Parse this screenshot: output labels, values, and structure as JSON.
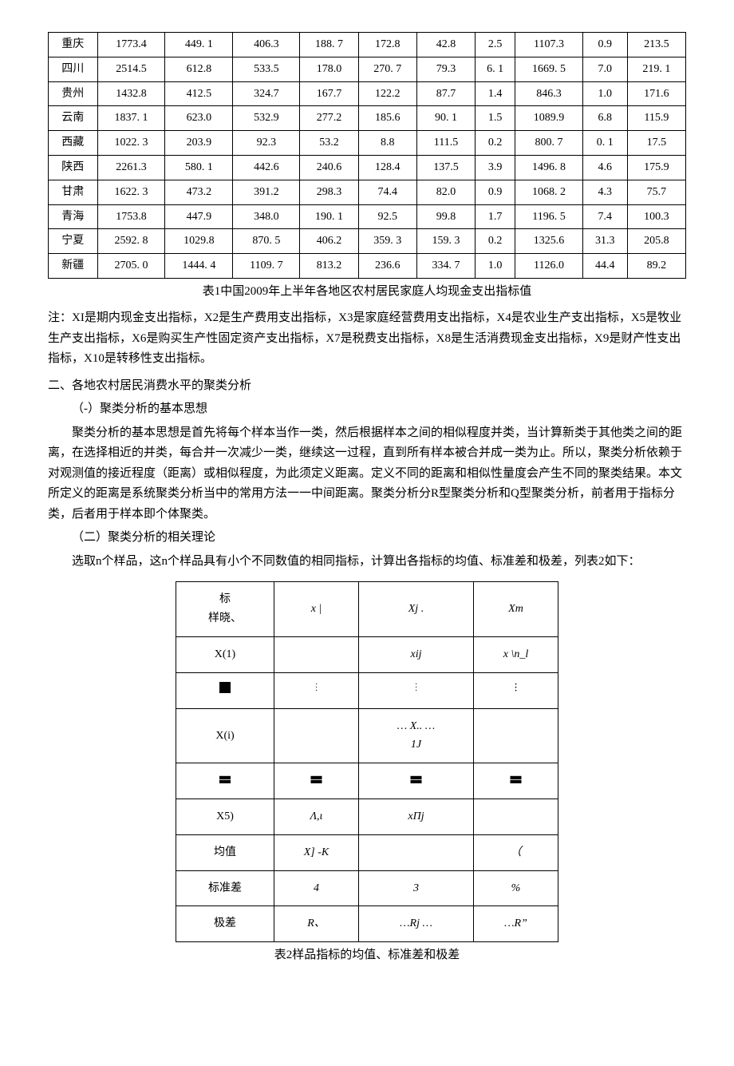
{
  "table1": {
    "rows": [
      {
        "region": "重庆",
        "c": [
          "1773.4",
          "449. 1",
          "406.3",
          "188. 7",
          "172.8",
          "42.8",
          "2.5",
          "1107.3",
          "0.9",
          "213.5"
        ]
      },
      {
        "region": "四川",
        "c": [
          "2514.5",
          "612.8",
          "533.5",
          "178.0",
          "270. 7",
          "79.3",
          "6. 1",
          "1669. 5",
          "7.0",
          "219. 1"
        ]
      },
      {
        "region": "贵州",
        "c": [
          "1432.8",
          "412.5",
          "324.7",
          "167.7",
          "122.2",
          "87.7",
          "1.4",
          "846.3",
          "1.0",
          "171.6"
        ]
      },
      {
        "region": "云南",
        "c": [
          "1837. 1",
          "623.0",
          "532.9",
          "277.2",
          "185.6",
          "90. 1",
          "1.5",
          "1089.9",
          "6.8",
          "115.9"
        ]
      },
      {
        "region": "西藏",
        "c": [
          "1022. 3",
          "203.9",
          "92.3",
          "53.2",
          "8.8",
          "111.5",
          "0.2",
          "800. 7",
          "0. 1",
          "17.5"
        ]
      },
      {
        "region": "陕西",
        "c": [
          "2261.3",
          "580. 1",
          "442.6",
          "240.6",
          "128.4",
          "137.5",
          "3.9",
          "1496. 8",
          "4.6",
          "175.9"
        ]
      },
      {
        "region": "甘肃",
        "c": [
          "1622. 3",
          "473.2",
          "391.2",
          "298.3",
          "74.4",
          "82.0",
          "0.9",
          "1068. 2",
          "4.3",
          "75.7"
        ]
      },
      {
        "region": "青海",
        "c": [
          "1753.8",
          "447.9",
          "348.0",
          "190. 1",
          "92.5",
          "99.8",
          "1.7",
          "1196. 5",
          "7.4",
          "100.3"
        ]
      },
      {
        "region": "宁夏",
        "c": [
          "2592. 8",
          "1029.8",
          "870. 5",
          "406.2",
          "359. 3",
          "159. 3",
          "0.2",
          "1325.6",
          "31.3",
          "205.8"
        ]
      },
      {
        "region": "新疆",
        "c": [
          "2705. 0",
          "1444. 4",
          "1109. 7",
          "813.2",
          "236.6",
          "334. 7",
          "1.0",
          "1126.0",
          "44.4",
          "89.2"
        ]
      }
    ],
    "caption": "表1中国2009年上半年各地区农村居民家庭人均现金支出指标值"
  },
  "note": "注：XI是期内现金支出指标，X2是生产费用支出指标，X3是家庭经营费用支出指标，X4是农业生产支出指标，X5是牧业生产支出指标，X6是购买生产性固定资产支出指标，X7是税费支出指标，X8是生活消费现金支出指标，X9是财产性支出指标，X10是转移性支出指标。",
  "sec2_title": "二、各地农村居民消费水平的聚类分析",
  "sub1_title": "（-）聚类分析的基本思想",
  "sub1_body": "聚类分析的基本思想是首先将每个样本当作一类，然后根据样本之间的相似程度并类，当计算新类于其他类之间的距离，在选择相近的并类，每合并一次减少一类，继续这一过程，直到所有样本被合并成一类为止。所以，聚类分析依赖于对观测值的接近程度（距离）或相似程度，为此须定义距离。定义不同的距离和相似性量度会产生不同的聚类结果。本文所定义的距离是系统聚类分析当中的常用方法一一中间距离。聚类分析分R型聚类分析和Q型聚类分析，前者用于指标分类，后者用于样本即个体聚类。",
  "sub2_title": "（二）聚类分析的相关理论",
  "sub2_body": "选取n个样品，这n个样品具有小个不同数值的相同指标，计算出各指标的均值、标准差和极差，列表2如下：",
  "table2": {
    "header": [
      "标\n样晓、",
      "x |",
      "Xj .",
      "Xm"
    ],
    "rows": [
      [
        "X(1)",
        "",
        "xij",
        "x \\n_l"
      ],
      [
        "[box]",
        "[vdots]",
        "[vdots]",
        "[bvdots]"
      ],
      [
        "X(i)",
        "",
        "…   X..   …\n        1J",
        ""
      ],
      [
        "[bars]",
        "[bars]",
        "[bars]",
        "[bars]"
      ],
      [
        "X5)",
        "Λ,ι",
        "xΠj",
        ""
      ],
      [
        "均值",
        "X]       -K",
        "",
        "（"
      ],
      [
        "标准差",
        "4",
        "3",
        "%"
      ],
      [
        "极差",
        "R、",
        "…Rj …",
        "…R”"
      ]
    ],
    "caption": "表2样品指标的均值、标准差和极差"
  }
}
